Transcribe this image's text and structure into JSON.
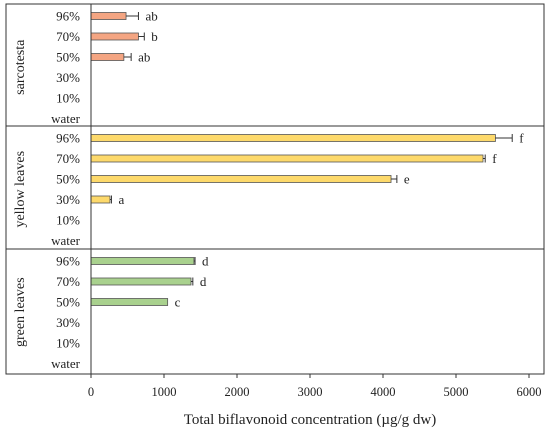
{
  "chart_data": {
    "type": "bar",
    "orientation": "horizontal",
    "title": "",
    "xlabel": "Total biflavonoid concentration (µg/g dw)",
    "ylabel": "",
    "xlim": [
      0,
      6000
    ],
    "xticks": [
      "0",
      "1000",
      "2000",
      "3000",
      "4000",
      "5000",
      "6000"
    ],
    "grid": false,
    "legend": "none",
    "groups": [
      {
        "name": "sarcotesta",
        "color": "#f4a582",
        "categories": [
          "96%",
          "70%",
          "50%",
          "30%",
          "10%",
          "water"
        ],
        "values": [
          480,
          650,
          450,
          0,
          0,
          0
        ],
        "errors": [
          170,
          80,
          100,
          0,
          0,
          0
        ],
        "letters": [
          "ab",
          "b",
          "ab",
          "",
          "",
          ""
        ]
      },
      {
        "name": "yellow leaves",
        "color": "#fdd96b",
        "categories": [
          "96%",
          "70%",
          "50%",
          "30%",
          "10%",
          "water"
        ],
        "values": [
          5540,
          5370,
          4110,
          260,
          0,
          0
        ],
        "errors": [
          230,
          30,
          80,
          20,
          0,
          0
        ],
        "letters": [
          "f",
          "f",
          "e",
          "a",
          "",
          ""
        ]
      },
      {
        "name": "green leaves",
        "color": "#a9d18e",
        "categories": [
          "96%",
          "70%",
          "50%",
          "30%",
          "10%",
          "water"
        ],
        "values": [
          1410,
          1370,
          1050,
          0,
          0,
          0
        ],
        "errors": [
          15,
          25,
          0,
          0,
          0,
          0
        ],
        "letters": [
          "d",
          "d",
          "c",
          "",
          "",
          ""
        ]
      }
    ]
  }
}
